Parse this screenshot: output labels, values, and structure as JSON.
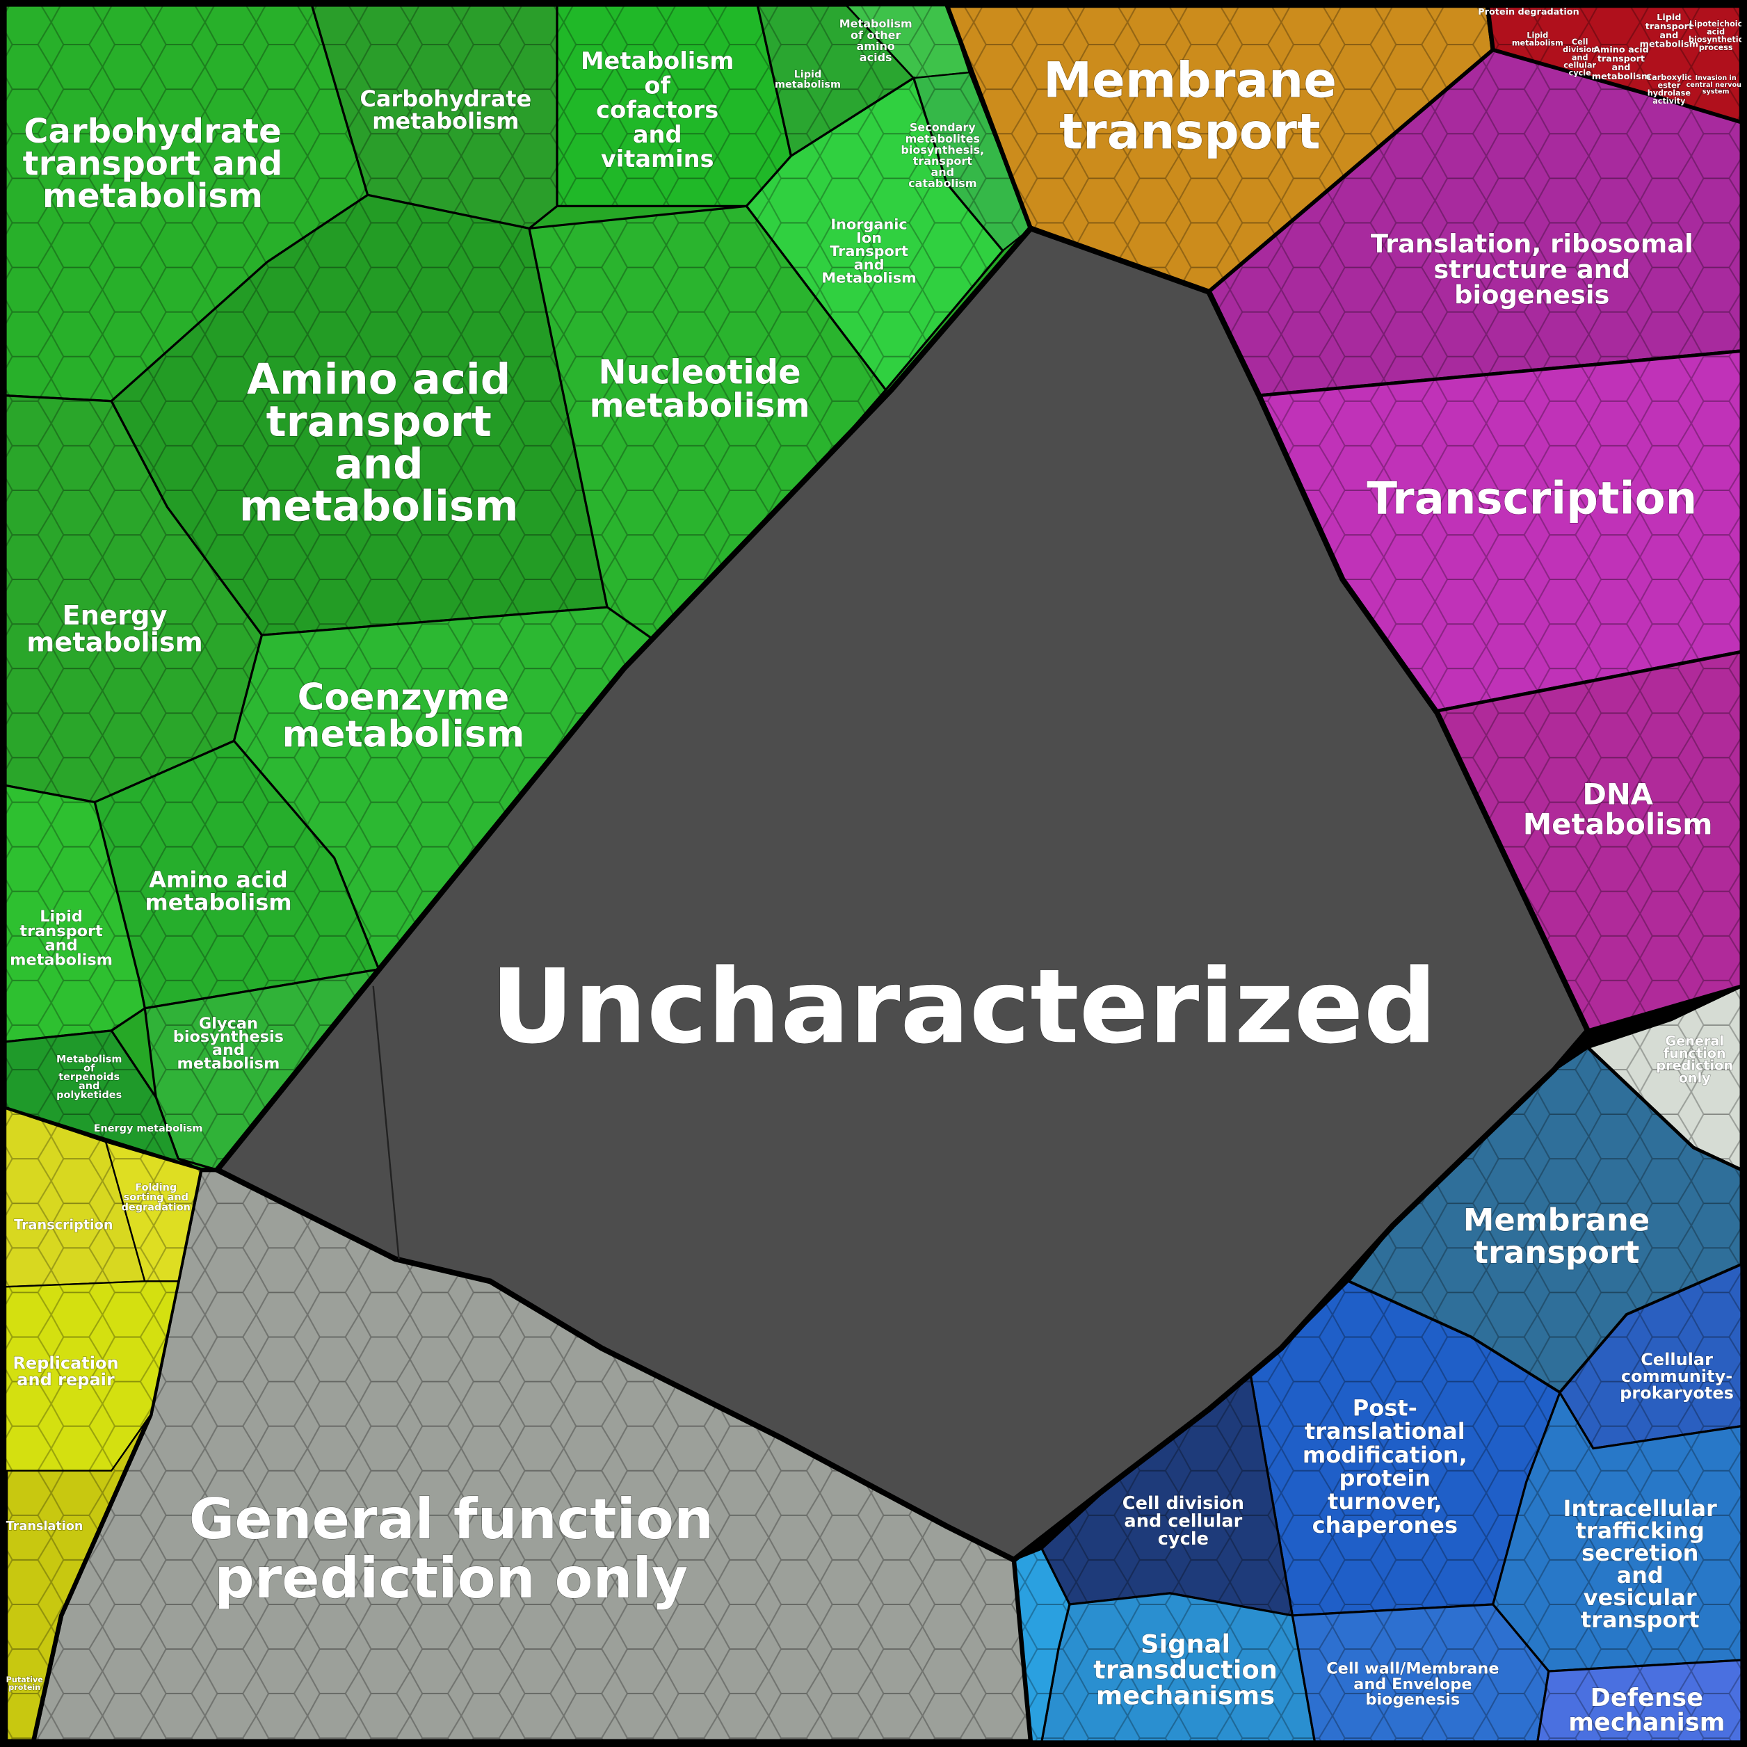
{
  "regions": [
    {
      "lines": [
        "Uncharacterized"
      ]
    },
    {
      "lines": [
        "Carbohydrate",
        "transport and",
        "metabolism"
      ]
    },
    {
      "lines": [
        "Carbohydrate",
        "metabolism"
      ]
    },
    {
      "lines": [
        "Metabolism",
        "of",
        "cofactors",
        "and",
        "vitamins"
      ]
    },
    {
      "lines": [
        "Metabolism",
        "of other",
        "amino",
        "acids"
      ]
    },
    {
      "lines": [
        "Lipid",
        "metabolism"
      ]
    },
    {
      "lines": [
        "Secondary",
        "metabolites",
        "biosynthesis,",
        "transport",
        "and",
        "catabolism"
      ]
    },
    {
      "lines": [
        "Inorganic",
        "Ion",
        "Transport",
        "and",
        "Metabolism"
      ]
    },
    {
      "lines": [
        "Amino acid",
        "transport",
        "and",
        "metabolism"
      ]
    },
    {
      "lines": [
        "Nucleotide",
        "metabolism"
      ]
    },
    {
      "lines": [
        "Energy",
        "metabolism"
      ]
    },
    {
      "lines": [
        "Coenzyme",
        "metabolism"
      ]
    },
    {
      "lines": [
        "Amino acid",
        "metabolism"
      ]
    },
    {
      "lines": [
        "Lipid",
        "transport",
        "and",
        "metabolism"
      ]
    },
    {
      "lines": [
        "Glycan",
        "biosynthesis",
        "and",
        "metabolism"
      ]
    },
    {
      "lines": [
        "Metabolism",
        "of",
        "terpenoids",
        "and",
        "polyketides"
      ]
    },
    {
      "lines": [
        "Energy metabolism"
      ]
    },
    {
      "lines": [
        "Membrane",
        "transport"
      ]
    },
    {
      "lines": [
        "Protein degradation"
      ]
    },
    {
      "lines": [
        "Lipid",
        "metabolism"
      ]
    },
    {
      "lines": [
        "Cell",
        "division",
        "and",
        "cellular",
        "cycle"
      ]
    },
    {
      "lines": [
        "Amino acid",
        "transport",
        "and",
        "metabolism"
      ]
    },
    {
      "lines": [
        "Lipid",
        "transport",
        "and",
        "metabolism"
      ]
    },
    {
      "lines": [
        "Lipoteichoic",
        "acid",
        "biosynthetic",
        "process"
      ]
    },
    {
      "lines": [
        "Carboxylic",
        "ester",
        "hydrolase",
        "activity"
      ]
    },
    {
      "lines": [
        "Invasion in",
        "central nervous",
        "system"
      ]
    },
    {
      "lines": [
        "Translation, ribosomal",
        "structure and",
        "biogenesis"
      ]
    },
    {
      "lines": [
        "Transcription"
      ]
    },
    {
      "lines": [
        "DNA",
        "Metabolism"
      ]
    },
    {
      "lines": [
        "General",
        "function",
        "prediction",
        "only"
      ]
    },
    {
      "lines": [
        "Membrane",
        "transport"
      ]
    },
    {
      "lines": [
        "Cellular",
        "community-",
        "prokaryotes"
      ]
    },
    {
      "lines": [
        "Post-",
        "translational",
        "modification,",
        "protein",
        "turnover,",
        "chaperones"
      ]
    },
    {
      "lines": [
        "Intracellular",
        "trafficking",
        "secretion",
        "and",
        "vesicular",
        "transport"
      ]
    },
    {
      "lines": [
        "Cell division",
        "and cellular",
        "cycle"
      ]
    },
    {
      "lines": [
        "Signal",
        "transduction",
        "mechanisms"
      ]
    },
    {
      "lines": [
        "Cell wall/Membrane",
        "and Envelope",
        "biogenesis"
      ]
    },
    {
      "lines": [
        "Defense",
        "mechanism"
      ]
    },
    {
      "lines": [
        "General function",
        "prediction only"
      ]
    },
    {
      "lines": [
        "Transcription"
      ]
    },
    {
      "lines": [
        "Folding",
        "sorting and",
        "degradation"
      ]
    },
    {
      "lines": [
        "Replication",
        "and repair"
      ]
    },
    {
      "lines": [
        "Translation"
      ]
    },
    {
      "lines": [
        "Putative",
        "protein"
      ]
    }
  ]
}
